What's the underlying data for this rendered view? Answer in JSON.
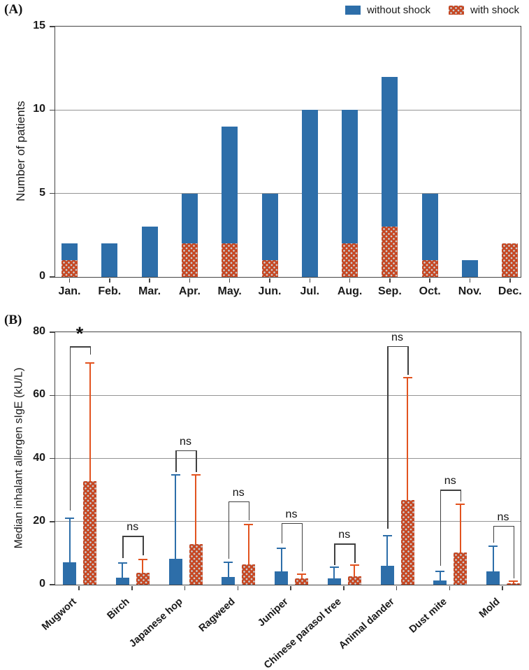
{
  "figure": {
    "panel_a_label": "(A)",
    "panel_b_label": "(B)"
  },
  "legend": {
    "items": [
      {
        "label": "without shock",
        "pattern": "solid"
      },
      {
        "label": "with shock",
        "pattern": "dots"
      }
    ]
  },
  "colors": {
    "without_shock": "#2d6ea9",
    "with_shock": "#c64722",
    "with_shock_error": "#e2531f",
    "dot_pattern": "#c9cdd1",
    "bracket": "#404040",
    "grid": "#949494",
    "axis": "#454545",
    "text": "#1a1a1a"
  },
  "chart_data": [
    {
      "type": "bar",
      "stacked": true,
      "title": "",
      "xlabel": "",
      "ylabel": "Number of patients",
      "ylim": [
        0,
        15
      ],
      "yticks": [
        0,
        5,
        10,
        15
      ],
      "gridlines": [
        5,
        10
      ],
      "legend_position": "top-right",
      "categories": [
        "Jan.",
        "Feb.",
        "Mar.",
        "Apr.",
        "May.",
        "Jun.",
        "Jul.",
        "Aug.",
        "Sep.",
        "Oct.",
        "Nov.",
        "Dec."
      ],
      "series": [
        {
          "name": "with shock",
          "values": [
            1,
            0,
            0,
            2,
            2,
            1,
            0,
            2,
            3,
            1,
            0,
            2
          ]
        },
        {
          "name": "without shock",
          "values": [
            1,
            2,
            3,
            3,
            7,
            4,
            10,
            8,
            9,
            4,
            1,
            0
          ]
        }
      ],
      "totals": [
        2,
        2,
        3,
        5,
        9,
        5,
        10,
        10,
        12,
        5,
        1,
        2
      ]
    },
    {
      "type": "bar",
      "stacked": false,
      "title": "",
      "xlabel": "",
      "ylabel": "Median inhalant allergen sIgE (kU/L)",
      "ylim": [
        0,
        80
      ],
      "yticks": [
        0,
        20,
        40,
        60,
        80
      ],
      "gridlines": [
        20,
        40,
        60
      ],
      "categories": [
        "Mugwort",
        "Birch",
        "Japanese hop",
        "Ragweed",
        "Juniper",
        "Chinese parasol tree",
        "Animal dander",
        "Dust mite",
        "Mold"
      ],
      "series": [
        {
          "name": "without shock",
          "values": [
            7.0,
            2.2,
            8.1,
            2.4,
            4.1,
            2.0,
            5.9,
            1.3,
            4.2
          ],
          "upper_errors": [
            21.0,
            6.9,
            34.8,
            7.2,
            11.6,
            5.6,
            15.6,
            4.1,
            12.1
          ]
        },
        {
          "name": "with shock",
          "values": [
            32.7,
            3.7,
            12.8,
            6.5,
            1.9,
            2.7,
            26.9,
            10.1,
            0.4
          ],
          "upper_errors": [
            70.3,
            8.0,
            34.7,
            19.0,
            3.3,
            6.3,
            65.6,
            25.4,
            1.1
          ]
        }
      ],
      "significance": [
        {
          "label": "*",
          "bracket_top": 75.5,
          "left_end": 23.5,
          "right_end": 73.0
        },
        {
          "label": "ns",
          "bracket_top": 15.5,
          "left_end": 8.5,
          "right_end": 9.3
        },
        {
          "label": "ns",
          "bracket_top": 42.6,
          "left_end": 35.6,
          "right_end": 35.6
        },
        {
          "label": "ns",
          "bracket_top": 26.4,
          "left_end": 8.3,
          "right_end": 20.4
        },
        {
          "label": "ns",
          "bracket_top": 19.6,
          "left_end": 13.0,
          "right_end": 4.2
        },
        {
          "label": "ns",
          "bracket_top": 13.0,
          "left_end": 6.3,
          "right_end": 6.9
        },
        {
          "label": "ns",
          "bracket_top": 75.6,
          "left_end": 17.8,
          "right_end": 66.4
        },
        {
          "label": "ns",
          "bracket_top": 30.1,
          "left_end": 5.9,
          "right_end": 26.3
        },
        {
          "label": "ns",
          "bracket_top": 18.7,
          "left_end": 13.3,
          "right_end": 1.9
        }
      ]
    }
  ]
}
